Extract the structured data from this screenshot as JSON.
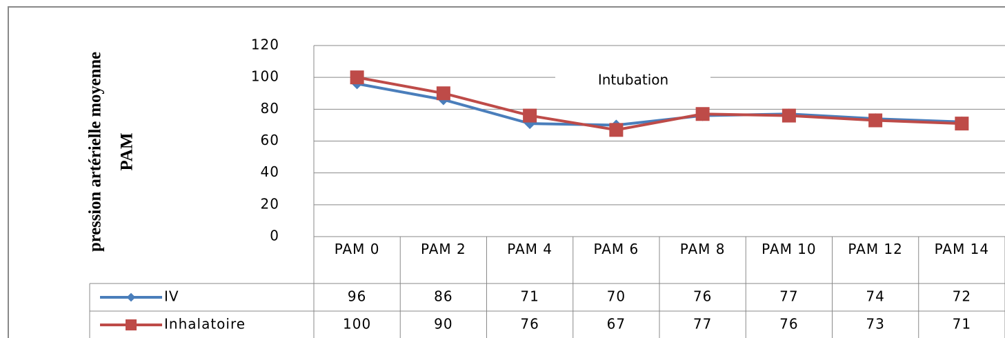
{
  "chart_data": {
    "type": "line",
    "y_label": [
      "pression artérielle moyenne",
      "PAM"
    ],
    "annotation": "Intubation",
    "categories": [
      "PAM 0",
      "PAM 2",
      "PAM 4",
      "PAM 6",
      "PAM 8",
      "PAM 10",
      "PAM 12",
      "PAM 14"
    ],
    "series": [
      {
        "name": "IV",
        "color": "#4a7ebb",
        "marker": "diamond",
        "values": [
          96,
          86,
          71,
          70,
          76,
          77,
          74,
          72
        ]
      },
      {
        "name": "Inhalatoire",
        "color": "#be4b48",
        "marker": "square",
        "values": [
          100,
          90,
          76,
          67,
          77,
          76,
          73,
          71
        ]
      }
    ],
    "ylim": [
      0,
      120
    ],
    "yticks": [
      0,
      20,
      40,
      60,
      80,
      100,
      120
    ],
    "grid": true,
    "data_table": true
  }
}
